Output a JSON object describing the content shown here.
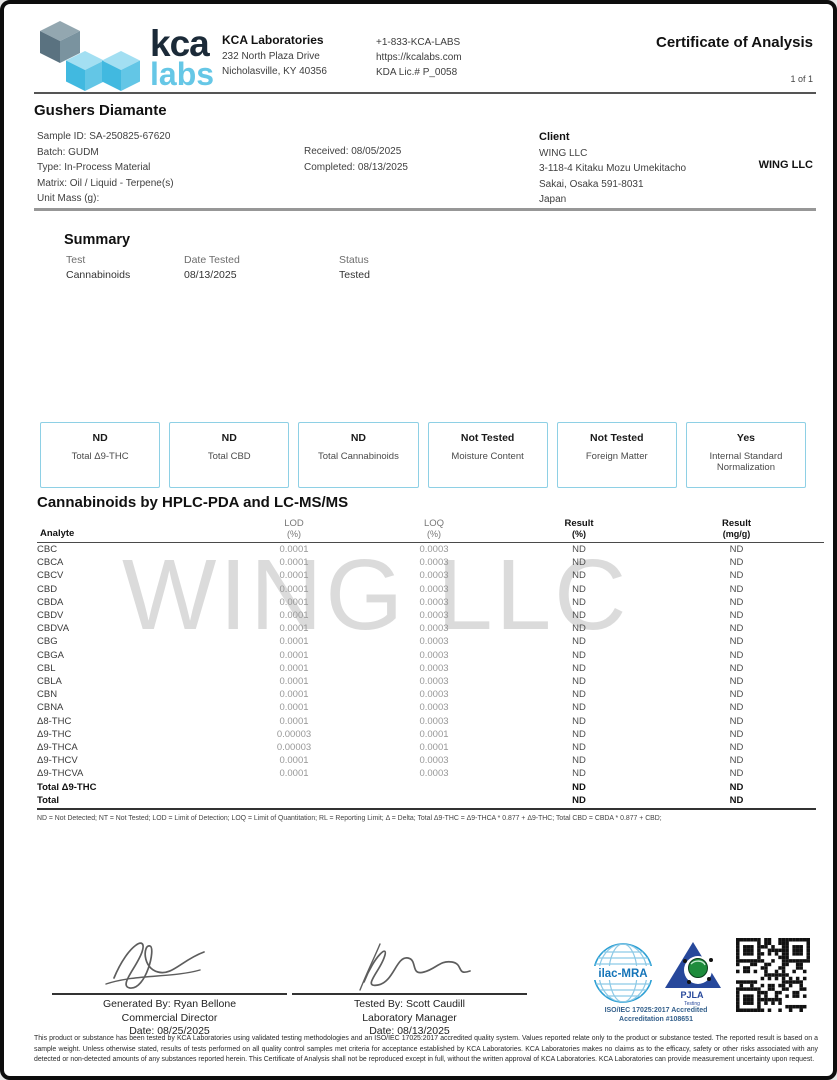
{
  "colors": {
    "logo_navy": "#1b2a38",
    "logo_light_blue": "#66c7e6",
    "box_border_blue": "#8ed0e5",
    "accred_navy": "#27489b",
    "watermark_gray": "#b9b9b9"
  },
  "header": {
    "logo_text_top": "kca",
    "logo_text_bottom": "labs",
    "company_name": "KCA Laboratories",
    "address_line1": "232 North Plaza Drive",
    "address_line2": "Nicholasville, KY 40356",
    "phone": "+1-833-KCA-LABS",
    "website": "https://kcalabs.com",
    "license": "KDA Lic.# P_0058",
    "doc_title": "Certificate of Analysis",
    "page_indicator": "1 of 1"
  },
  "sample": {
    "name": "Gushers Diamante",
    "info_lines": [
      "Sample ID: SA-250825-67620",
      "Batch: GUDM",
      "Type: In-Process Material",
      "Matrix: Oil / Liquid - Terpene(s)",
      "Unit Mass (g):"
    ],
    "received": "Received: 08/05/2025",
    "completed": "Completed: 08/13/2025"
  },
  "client": {
    "label": "Client",
    "name": "WING LLC",
    "address_lines": [
      "3-118-4 Kitaku Mozu Umekitacho",
      "Sakai, Osaka 591-8031",
      "Japan"
    ],
    "name_right": "WING LLC"
  },
  "summary": {
    "title": "Summary",
    "columns": [
      "Test",
      "Date Tested",
      "Status"
    ],
    "rows": [
      [
        "Cannabinoids",
        "08/13/2025",
        "Tested"
      ]
    ]
  },
  "result_boxes": [
    {
      "value": "ND",
      "label": "Total Δ9-THC"
    },
    {
      "value": "ND",
      "label": "Total CBD"
    },
    {
      "value": "ND",
      "label": "Total Cannabinoids"
    },
    {
      "value": "Not Tested",
      "label": "Moisture Content"
    },
    {
      "value": "Not Tested",
      "label": "Foreign Matter"
    },
    {
      "value": "Yes",
      "label": "Internal Standard Normalization"
    }
  ],
  "cannabinoids": {
    "title": "Cannabinoids by HPLC-PDA and LC-MS/MS",
    "headers": {
      "analyte": "Analyte",
      "lod": "LOD",
      "lod_unit": "(%)",
      "loq": "LOQ",
      "loq_unit": "(%)",
      "result_pct": "Result",
      "result_pct_unit": "(%)",
      "result_mgg": "Result",
      "result_mgg_unit": "(mg/g)"
    },
    "rows": [
      {
        "analyte": "CBC",
        "lod": "0.0001",
        "loq": "0.0003",
        "result_pct": "ND",
        "result_mgg": "ND",
        "bold": false
      },
      {
        "analyte": "CBCA",
        "lod": "0.0001",
        "loq": "0.0003",
        "result_pct": "ND",
        "result_mgg": "ND",
        "bold": false
      },
      {
        "analyte": "CBCV",
        "lod": "0.0001",
        "loq": "0.0003",
        "result_pct": "ND",
        "result_mgg": "ND",
        "bold": false
      },
      {
        "analyte": "CBD",
        "lod": "0.0001",
        "loq": "0.0003",
        "result_pct": "ND",
        "result_mgg": "ND",
        "bold": false
      },
      {
        "analyte": "CBDA",
        "lod": "0.0001",
        "loq": "0.0003",
        "result_pct": "ND",
        "result_mgg": "ND",
        "bold": false
      },
      {
        "analyte": "CBDV",
        "lod": "0.0001",
        "loq": "0.0003",
        "result_pct": "ND",
        "result_mgg": "ND",
        "bold": false
      },
      {
        "analyte": "CBDVA",
        "lod": "0.0001",
        "loq": "0.0003",
        "result_pct": "ND",
        "result_mgg": "ND",
        "bold": false
      },
      {
        "analyte": "CBG",
        "lod": "0.0001",
        "loq": "0.0003",
        "result_pct": "ND",
        "result_mgg": "ND",
        "bold": false
      },
      {
        "analyte": "CBGA",
        "lod": "0.0001",
        "loq": "0.0003",
        "result_pct": "ND",
        "result_mgg": "ND",
        "bold": false
      },
      {
        "analyte": "CBL",
        "lod": "0.0001",
        "loq": "0.0003",
        "result_pct": "ND",
        "result_mgg": "ND",
        "bold": false
      },
      {
        "analyte": "CBLA",
        "lod": "0.0001",
        "loq": "0.0003",
        "result_pct": "ND",
        "result_mgg": "ND",
        "bold": false
      },
      {
        "analyte": "CBN",
        "lod": "0.0001",
        "loq": "0.0003",
        "result_pct": "ND",
        "result_mgg": "ND",
        "bold": false
      },
      {
        "analyte": "CBNA",
        "lod": "0.0001",
        "loq": "0.0003",
        "result_pct": "ND",
        "result_mgg": "ND",
        "bold": false
      },
      {
        "analyte": "Δ8-THC",
        "lod": "0.0001",
        "loq": "0.0003",
        "result_pct": "ND",
        "result_mgg": "ND",
        "bold": false
      },
      {
        "analyte": "Δ9-THC",
        "lod": "0.00003",
        "loq": "0.0001",
        "result_pct": "ND",
        "result_mgg": "ND",
        "bold": false
      },
      {
        "analyte": "Δ9-THCA",
        "lod": "0.00003",
        "loq": "0.0001",
        "result_pct": "ND",
        "result_mgg": "ND",
        "bold": false
      },
      {
        "analyte": "Δ9-THCV",
        "lod": "0.0001",
        "loq": "0.0003",
        "result_pct": "ND",
        "result_mgg": "ND",
        "bold": false
      },
      {
        "analyte": "Δ9-THCVA",
        "lod": "0.0001",
        "loq": "0.0003",
        "result_pct": "ND",
        "result_mgg": "ND",
        "bold": false
      },
      {
        "analyte": "Total Δ9-THC",
        "lod": "",
        "loq": "",
        "result_pct": "ND",
        "result_mgg": "ND",
        "bold": true
      },
      {
        "analyte": "Total",
        "lod": "",
        "loq": "",
        "result_pct": "ND",
        "result_mgg": "ND",
        "bold": true
      }
    ],
    "footnote": "ND = Not Detected; NT = Not Tested; LOD = Limit of Detection; LOQ = Limit of Quantitation; RL = Reporting Limit; Δ = Delta; Total Δ9-THC = Δ9-THCA * 0.877 + Δ9-THC; Total CBD = CBDA * 0.877 + CBD;"
  },
  "watermark": "WING LLC",
  "signatures": [
    {
      "name": "Generated By: Ryan Bellone",
      "title": "Commercial Director",
      "date": "Date: 08/25/2025"
    },
    {
      "name": "Tested By: Scott Caudill",
      "title": "Laboratory Manager",
      "date": "Date: 08/13/2025"
    }
  ],
  "accreditation": {
    "ilac_label": "ilac-MRA",
    "pjla_label": "PJLA",
    "pjla_sub": "Testing",
    "iso_line": "ISO/IEC 17025:2017 Accredited",
    "number_line": "Accreditation #108651"
  },
  "disclaimer": "This product or substance has been tested by KCA Laboratories using validated testing methodologies and an ISO/IEC 17025:2017 accredited quality system. Values reported relate only to the product or substance tested. The reported result is based on a sample weight. Unless otherwise stated, results of tests performed on all quality control samples met criteria for acceptance established by KCA Laboratories. KCA Laboratories makes no claims as to the efficacy, safety or other risks associated with any detected or non-detected amounts of any substances reported herein. This Certificate of Analysis shall not be reproduced except in full, without the written approval of KCA Laboratories. KCA Laboratories can provide measurement uncertainty upon request."
}
